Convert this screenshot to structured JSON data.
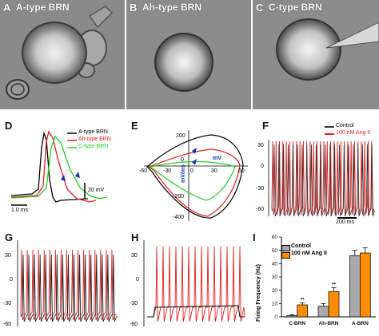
{
  "panels": {
    "A": {
      "letter": "A",
      "title": "A-type BRN"
    },
    "B": {
      "letter": "B",
      "title": "Ah-type BRN"
    },
    "C": {
      "letter": "C",
      "title": "C-type BRN"
    },
    "D": {
      "letter": "D",
      "legend": [
        "A-type BRN",
        "Ah-type BRN",
        "C-type BRN"
      ],
      "legend_colors": [
        "#000000",
        "#e02020",
        "#22cc22"
      ],
      "scale_v": "20 mV",
      "scale_t": "1.0 ms"
    },
    "E": {
      "letter": "E",
      "xlabel": "mV",
      "ylabel": "mV/ms",
      "yticks": [
        "200",
        "0",
        "-200",
        "-400"
      ],
      "xticks": [
        "-60",
        "-30",
        "0",
        "30",
        "60"
      ]
    },
    "F": {
      "letter": "F",
      "legend": [
        "Control",
        "100 nM Ang II"
      ],
      "legend_colors": [
        "#333333",
        "#e02020"
      ],
      "yticks": [
        "30",
        "0",
        "-30",
        "-60"
      ],
      "scale_t": "200 ms"
    },
    "G": {
      "letter": "G",
      "yticks": [
        "30",
        "0",
        "-30",
        "-60"
      ]
    },
    "H": {
      "letter": "H",
      "yticks": [
        "30",
        "0",
        "-30",
        "-60"
      ]
    },
    "I": {
      "letter": "I",
      "legend": [
        "Control",
        "100 nM Ang II"
      ],
      "legend_colors": [
        "#aaaaaa",
        "#ff8c00"
      ],
      "ylabel": "Firing Frequency (Hz)",
      "yticks": [
        "60",
        "50",
        "40",
        "30",
        "20",
        "10",
        "0"
      ],
      "sig": [
        "**",
        "**"
      ]
    }
  },
  "chart_data": {
    "type": "bar",
    "categories": [
      "C-BRN",
      "Ah-BRN",
      "A-BRN"
    ],
    "series": [
      {
        "name": "Control",
        "values": [
          1,
          8,
          46
        ],
        "errors": [
          0.5,
          2,
          4
        ]
      },
      {
        "name": "100 nM Ang II",
        "values": [
          9,
          19,
          48
        ],
        "errors": [
          1.5,
          3,
          4
        ]
      }
    ],
    "ylabel": "Firing Frequency (Hz)",
    "ylim": [
      0,
      60
    ],
    "grid": false,
    "legend": "top-left"
  }
}
